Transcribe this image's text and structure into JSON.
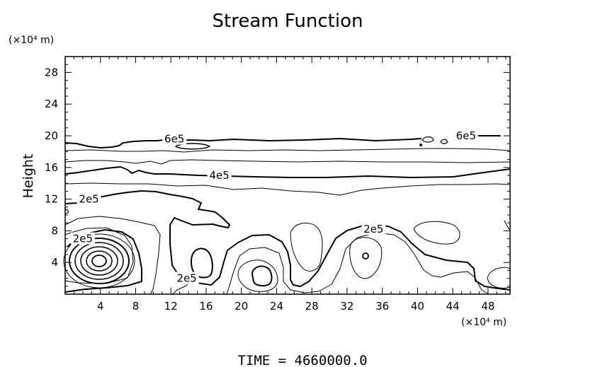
{
  "chart_data": {
    "type": "contour",
    "title": "Stream Function",
    "ylabel": "Height",
    "y_unit_label": "(×10⁴ m)",
    "x_unit_label": "(×10⁴ m)",
    "xlim": [
      0,
      50.5
    ],
    "ylim": [
      0,
      30
    ],
    "xticks": [
      "4",
      "8",
      "12",
      "16",
      "20",
      "24",
      "28",
      "32",
      "36",
      "40",
      "44",
      "48"
    ],
    "yticks": [
      "4",
      "8",
      "12",
      "16",
      "20",
      "24",
      "28"
    ],
    "contour_labels": [
      {
        "text": "6e5",
        "x": 12.4,
        "y": 19.6
      },
      {
        "text": "6e5",
        "x": 45.5,
        "y": 20.0
      },
      {
        "text": "4e5",
        "x": 17.5,
        "y": 15.0
      },
      {
        "text": "2e5",
        "x": 2.7,
        "y": 12.0
      },
      {
        "text": "2e5",
        "x": 2.0,
        "y": 7.0
      },
      {
        "text": "2e5",
        "x": 35.0,
        "y": 8.2
      },
      {
        "text": "2e5",
        "x": 13.8,
        "y": 2.0
      }
    ],
    "grid": false,
    "footer": "TIME = 4660000.0"
  }
}
